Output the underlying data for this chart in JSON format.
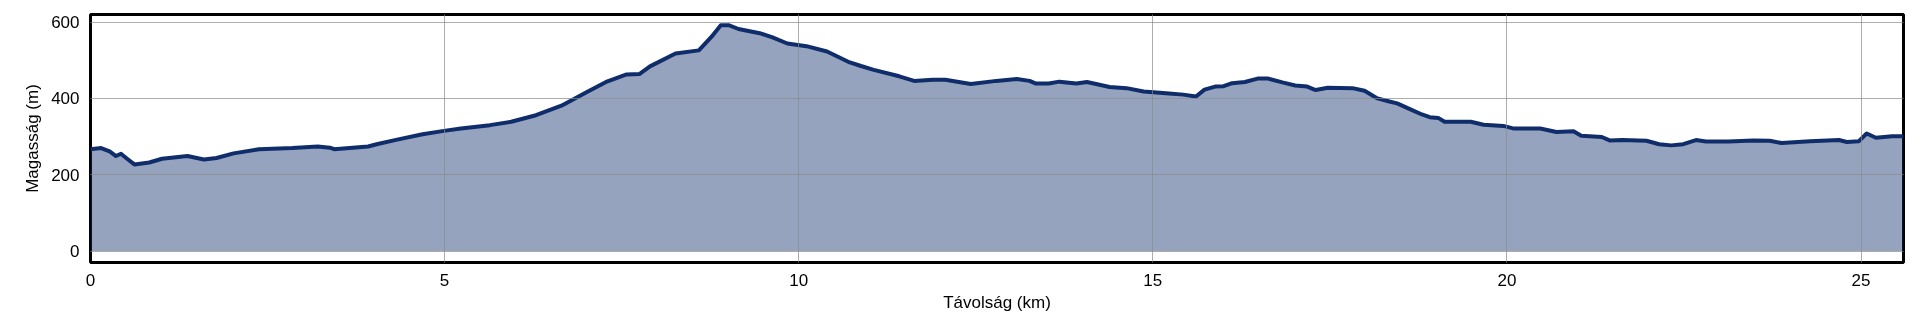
{
  "chart_data": {
    "type": "area",
    "xlabel": "Távolság (km)",
    "ylabel": "Magasság (m)",
    "xlim": [
      0,
      25.6
    ],
    "ylim": [
      -30,
      620
    ],
    "xticks": [
      0,
      5,
      10,
      15,
      20,
      25
    ],
    "yticks": [
      0,
      200,
      400,
      600
    ],
    "grid": true,
    "series": [
      {
        "color": "#0f2d6b",
        "x": [
          0,
          0.15,
          0.27,
          0.36,
          0.43,
          0.53,
          0.62,
          0.83,
          1.01,
          1.37,
          1.6,
          1.78,
          2.02,
          2.38,
          2.85,
          3.21,
          3.38,
          3.44,
          3.92,
          4.04,
          4.33,
          4.69,
          4.99,
          5.23,
          5.64,
          5.94,
          6.29,
          6.65,
          7.01,
          7.3,
          7.57,
          7.75,
          7.9,
          8.26,
          8.59,
          8.77,
          8.9,
          9.01,
          9.15,
          9.45,
          9.63,
          9.84,
          10.11,
          10.4,
          10.7,
          10.88,
          11.06,
          11.42,
          11.63,
          11.89,
          12.07,
          12.43,
          12.79,
          13.08,
          13.26,
          13.35,
          13.53,
          13.68,
          13.92,
          14.07,
          14.39,
          14.63,
          14.87,
          15.23,
          15.43,
          15.61,
          15.73,
          15.88,
          16.0,
          16.12,
          16.3,
          16.48,
          16.63,
          16.83,
          17.01,
          17.18,
          17.3,
          17.47,
          17.82,
          17.99,
          18.16,
          18.34,
          18.45,
          18.63,
          18.8,
          18.91,
          19.03,
          19.12,
          19.49,
          19.67,
          19.95,
          20.1,
          20.47,
          20.7,
          20.94,
          21.05,
          21.34,
          21.45,
          21.63,
          21.97,
          22.15,
          22.32,
          22.49,
          22.67,
          22.81,
          23.13,
          23.48,
          23.71,
          23.88,
          24.28,
          24.69,
          24.8,
          24.97,
          25.08,
          25.21,
          25.44,
          25.6
        ],
        "values": [
          267,
          270,
          261,
          249,
          255,
          240,
          227,
          232,
          242,
          249,
          240,
          244,
          256,
          267,
          270,
          274,
          271,
          267,
          274,
          280,
          292,
          306,
          315,
          321,
          330,
          339,
          356,
          381,
          417,
          445,
          463,
          464,
          484,
          518,
          526,
          562,
          592,
          592,
          582,
          571,
          560,
          544,
          537,
          523,
          496,
          485,
          475,
          458,
          446,
          449,
          449,
          438,
          446,
          451,
          446,
          439,
          439,
          444,
          439,
          443,
          430,
          427,
          418,
          413,
          410,
          405,
          423,
          431,
          432,
          440,
          443,
          452,
          452,
          442,
          434,
          431,
          422,
          428,
          427,
          420,
          401,
          392,
          387,
          372,
          358,
          351,
          349,
          339,
          339,
          331,
          328,
          321,
          321,
          312,
          314,
          302,
          299,
          290,
          291,
          289,
          280,
          277,
          280,
          291,
          287,
          287,
          290,
          289,
          283,
          288,
          291,
          286,
          288,
          308,
          297,
          301,
          301
        ]
      }
    ]
  }
}
